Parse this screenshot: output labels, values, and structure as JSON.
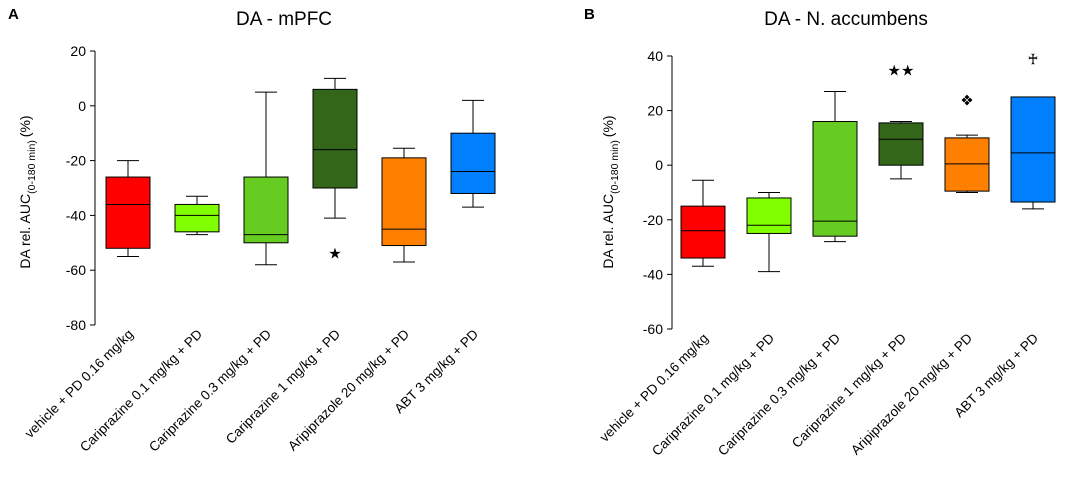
{
  "chart_data": [
    {
      "panel": "A",
      "type": "box",
      "title": "DA - mPFC",
      "ylabel_main": "DA rel. AUC",
      "ylabel_sub": "(0-180 min)",
      "ylabel_unit": "(%)",
      "ylim": [
        -80,
        20
      ],
      "yticks": [
        20,
        0,
        -20,
        -40,
        -60,
        -80
      ],
      "categories": [
        "vehicle + PD 0.16 mg/kg",
        "Cariprazine 0.1 mg/kg + PD",
        "Cariprazine 0.3 mg/kg + PD",
        "Cariprazine 1 mg/kg + PD",
        "Aripiprazole 20 mg/kg + PD",
        "ABT 3 mg/kg + PD"
      ],
      "boxes": [
        {
          "min": -55,
          "q1": -52,
          "median": -36,
          "q3": -26,
          "max": -20,
          "color": "#ff0000"
        },
        {
          "min": -47,
          "q1": -46,
          "median": -40,
          "q3": -36,
          "max": -33,
          "color": "#80ff00"
        },
        {
          "min": -58,
          "q1": -50,
          "median": -47,
          "q3": -26,
          "max": 5,
          "color": "#66cc22"
        },
        {
          "min": -41,
          "q1": -30,
          "median": -16,
          "q3": 6,
          "max": 10,
          "color": "#336619"
        },
        {
          "min": -57,
          "q1": -51,
          "median": -45,
          "q3": -19,
          "max": -15.5,
          "color": "#ff8000"
        },
        {
          "min": -37,
          "q1": -32,
          "median": -24,
          "q3": -10,
          "max": 2,
          "color": "#0080ff"
        }
      ],
      "annotations": [
        {
          "category_index": 3,
          "y": -53.5,
          "text": "★"
        }
      ]
    },
    {
      "panel": "B",
      "type": "box",
      "title": "DA - N. accumbens",
      "ylabel_main": "DA rel. AUC",
      "ylabel_sub": "(0-180 min)",
      "ylabel_unit": "(%)",
      "ylim": [
        -60,
        40
      ],
      "yticks": [
        40,
        20,
        0,
        -20,
        -40,
        -60
      ],
      "categories": [
        "vehicle + PD 0.16 mg/kg",
        "Cariprazine 0.1 mg/kg + PD",
        "Cariprazine 0.3 mg/kg + PD",
        "Cariprazine 1 mg/kg + PD",
        "Aripiprazole 20 mg/kg + PD",
        "ABT 3 mg/kg + PD"
      ],
      "boxes": [
        {
          "min": -37,
          "q1": -34,
          "median": -24,
          "q3": -15,
          "max": -5.5,
          "color": "#ff0000"
        },
        {
          "min": -39,
          "q1": -25,
          "median": -22,
          "q3": -12,
          "max": -10,
          "color": "#80ff00"
        },
        {
          "min": -28,
          "q1": -26,
          "median": -20.5,
          "q3": 16,
          "max": 27,
          "color": "#66cc22"
        },
        {
          "min": -5,
          "q1": 0,
          "median": 9.5,
          "q3": 15.5,
          "max": 16,
          "color": "#336619"
        },
        {
          "min": -10,
          "q1": -9.5,
          "median": 0.5,
          "q3": 10,
          "max": 11,
          "color": "#ff8000"
        },
        {
          "min": -16,
          "q1": -13.5,
          "median": 4.5,
          "q3": 25,
          "max": 25,
          "color": "#0080ff"
        }
      ],
      "annotations": [
        {
          "category_index": 3,
          "y": 35,
          "text": "★★"
        },
        {
          "category_index": 4,
          "y": 24,
          "text": "❖"
        },
        {
          "category_index": 5,
          "y": 39,
          "text": "♰"
        }
      ]
    }
  ]
}
